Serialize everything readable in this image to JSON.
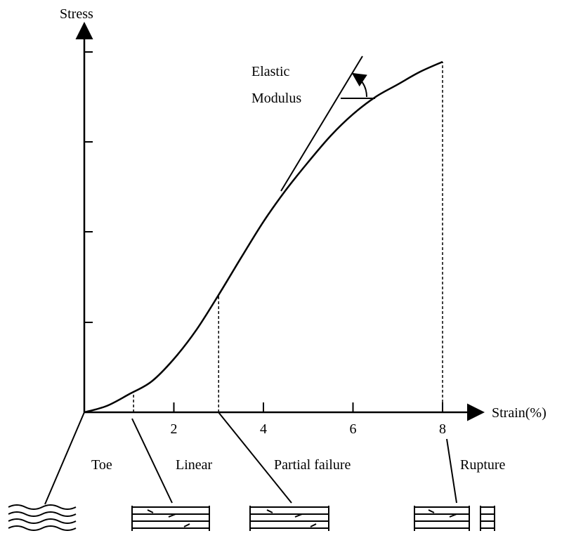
{
  "chart_data": {
    "type": "line",
    "y_label": "Stress",
    "x_label": "Strain(%)",
    "annotation": [
      "Elastic",
      "Modulus"
    ],
    "regions": [
      "Toe",
      "Linear",
      "Partial failure",
      "Rupture"
    ],
    "region_bounds": [
      1.1,
      3,
      8
    ],
    "x": [
      0,
      0.5,
      1,
      1.5,
      2,
      2.5,
      3,
      3.5,
      4,
      4.5,
      5,
      5.5,
      6,
      6.5,
      7,
      7.5,
      8
    ],
    "values": [
      0,
      0.07,
      0.2,
      0.34,
      0.59,
      0.91,
      1.3,
      1.71,
      2.11,
      2.46,
      2.77,
      3.06,
      3.3,
      3.49,
      3.63,
      3.77,
      3.88
    ],
    "color": "#000000",
    "xlim": [
      0,
      8.8
    ],
    "ylim": [
      0,
      4.3
    ],
    "xticks": [
      2,
      4,
      6,
      8
    ]
  }
}
